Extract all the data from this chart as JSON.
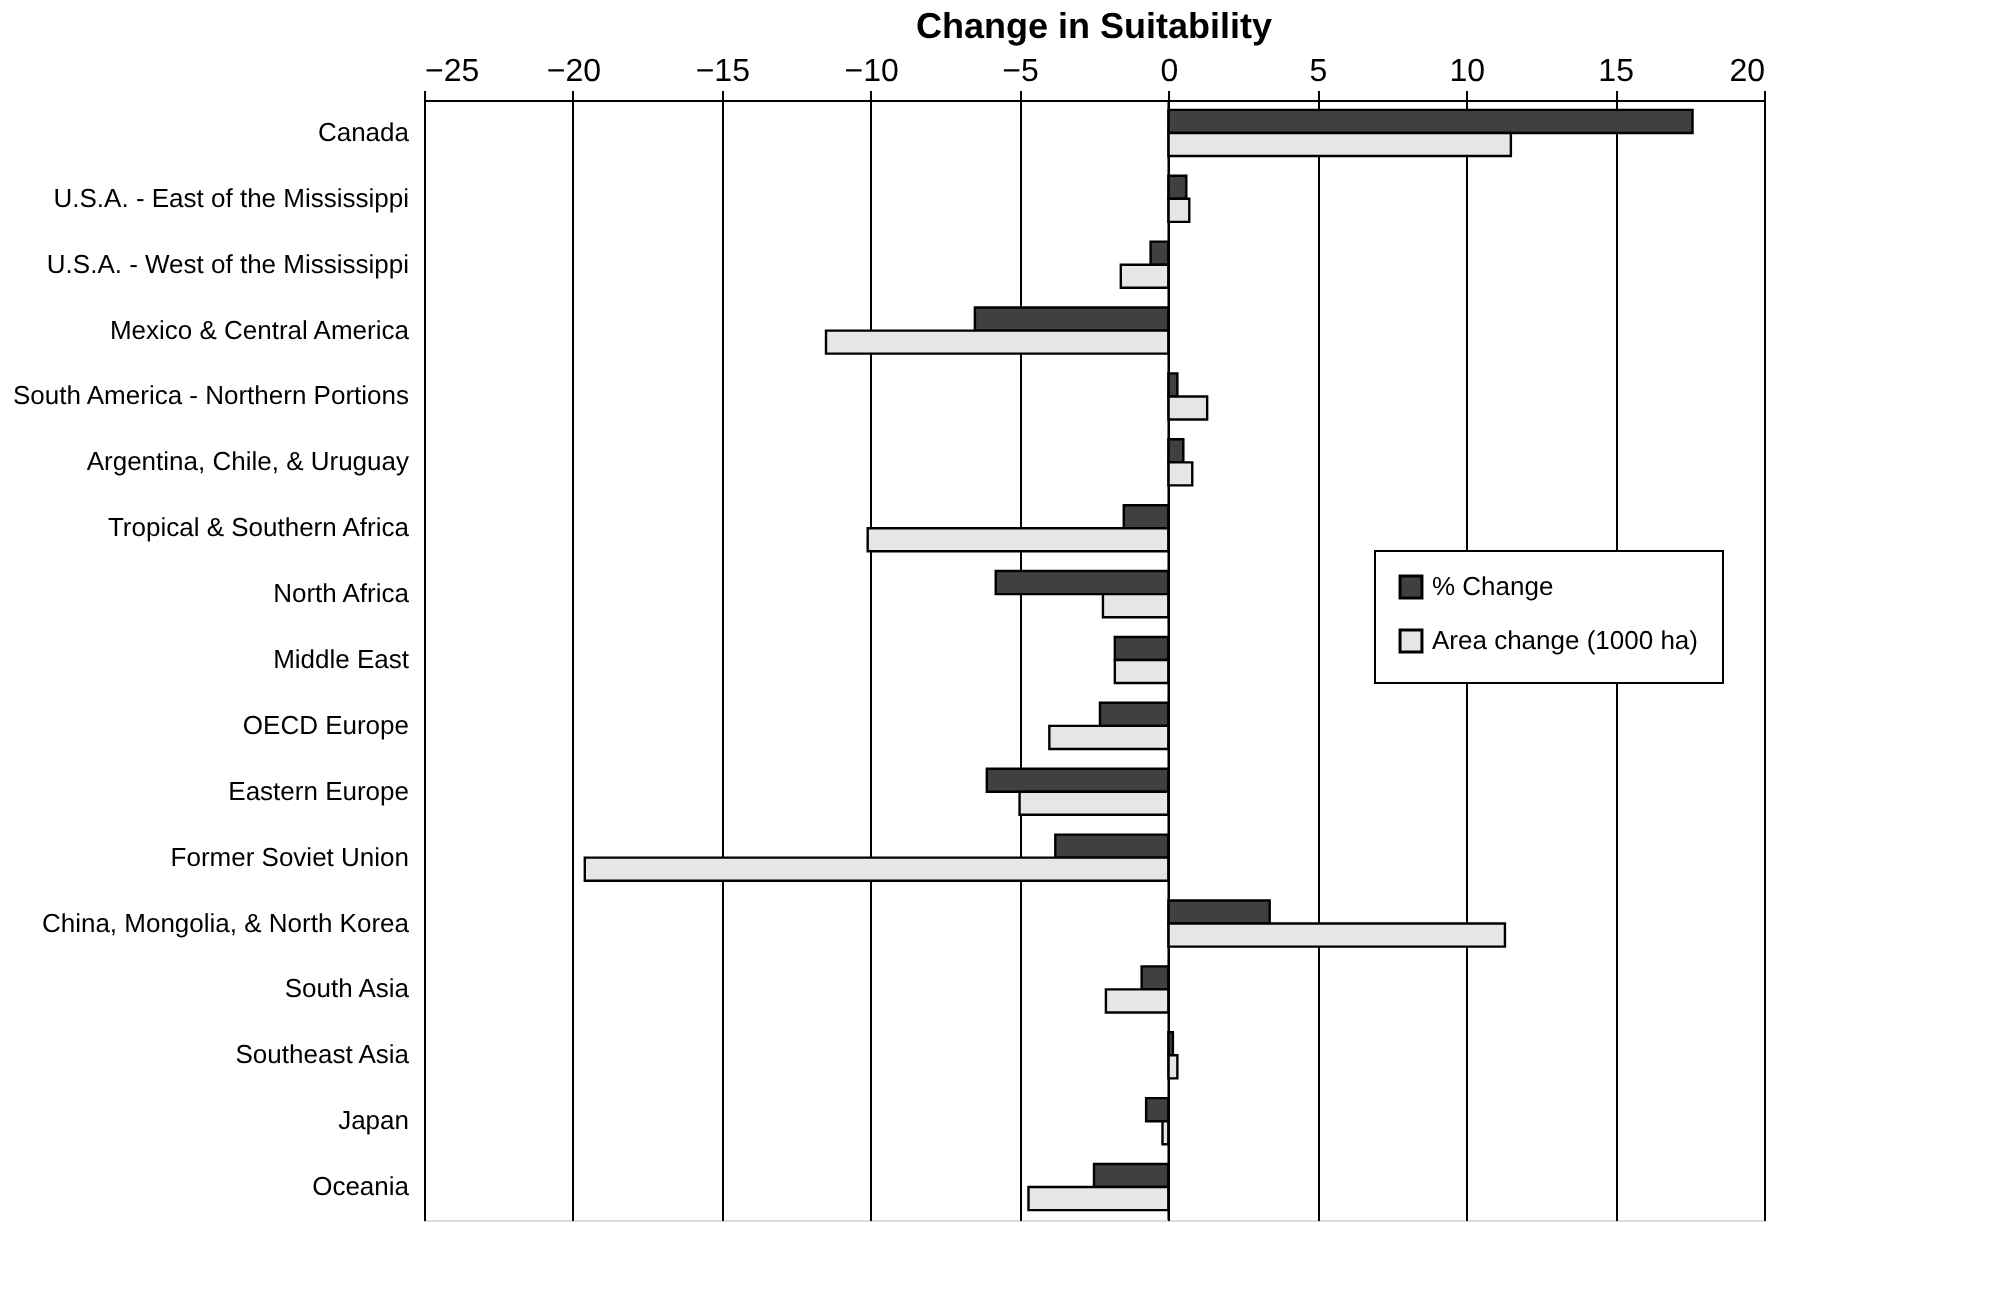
{
  "chart_data": {
    "type": "bar",
    "orientation": "horizontal",
    "title": "Change in Suitability",
    "categories": [
      "Canada",
      "U.S.A. - East of the Mississippi",
      "U.S.A. - West of the Mississippi",
      "Mexico & Central America",
      "South America - Northern Portions",
      "Argentina, Chile, & Uruguay",
      "Tropical & Southern Africa",
      "North Africa",
      "Middle East",
      "OECD Europe",
      "Eastern Europe",
      "Former Soviet Union",
      "China, Mongolia, & North Korea",
      "South Asia",
      "Southeast Asia",
      "Japan",
      "Oceania"
    ],
    "series": [
      {
        "name": "% Change",
        "color": "#404040",
        "values": [
          17.6,
          0.6,
          -0.6,
          -6.5,
          0.3,
          0.5,
          -1.5,
          -5.8,
          -1.8,
          -2.3,
          -6.1,
          -3.8,
          3.4,
          -0.9,
          0.15,
          -0.75,
          -2.5
        ]
      },
      {
        "name": "Area change (1000 ha)",
        "color": "#e6e6e6",
        "values": [
          11.5,
          0.7,
          -1.6,
          -11.5,
          1.3,
          0.8,
          -10.1,
          -2.2,
          -1.8,
          -4.0,
          -5.0,
          -19.6,
          11.3,
          -2.1,
          0.3,
          -0.2,
          -4.7
        ]
      }
    ],
    "xlim": [
      -25,
      20
    ],
    "xticks": [
      -25,
      -20,
      -15,
      -10,
      -5,
      0,
      5,
      10,
      15,
      20
    ],
    "grid": "x",
    "legend": "right"
  }
}
